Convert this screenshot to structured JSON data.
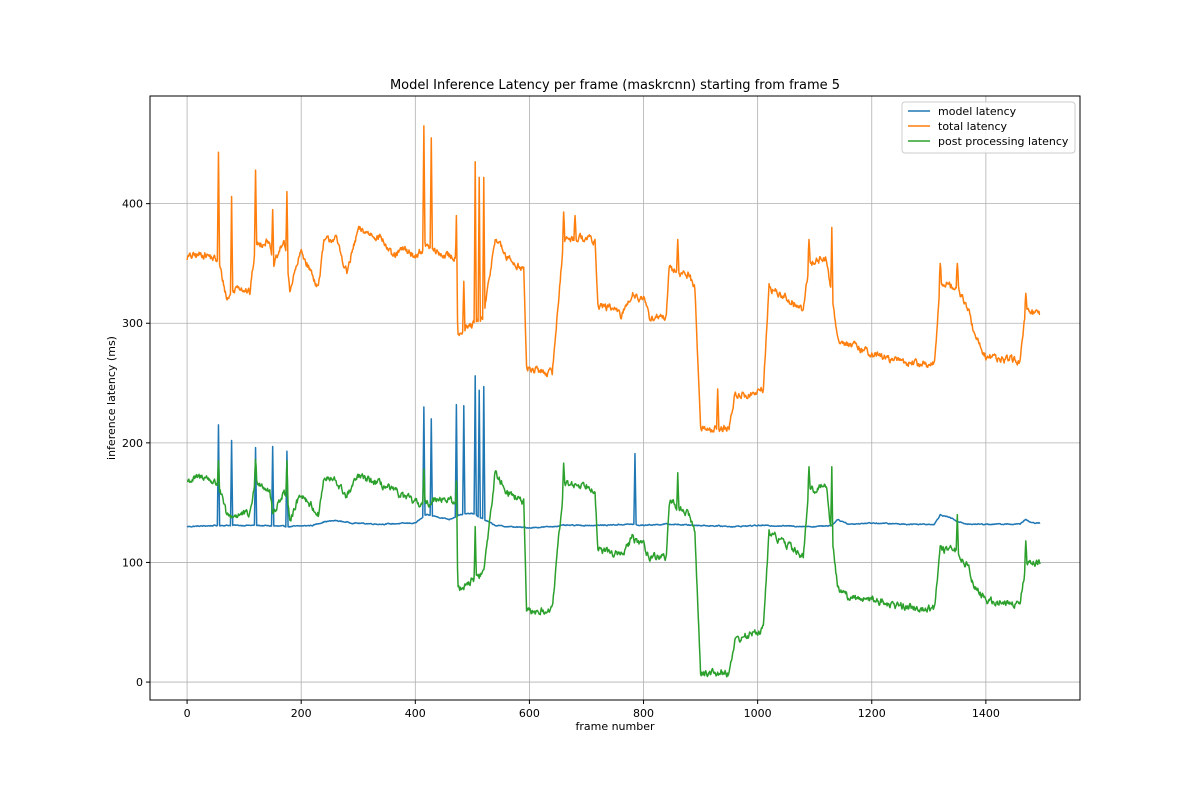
{
  "chart_data": {
    "type": "line",
    "title": "Model Inference Latency per frame (maskrcnn) starting from frame 5",
    "xlabel": "frame number",
    "ylabel": "inference latency (ms)",
    "xlim": [
      -65,
      1565
    ],
    "ylim": [
      -15,
      490
    ],
    "xticks": [
      0,
      200,
      400,
      600,
      800,
      1000,
      1200,
      1400
    ],
    "yticks": [
      0,
      100,
      200,
      300,
      400
    ],
    "grid": true,
    "legend_position": "top-right",
    "series": [
      {
        "name": "model latency",
        "color": "#1f77b4",
        "baseline": [
          [
            0,
            130
          ],
          [
            60,
            131
          ],
          [
            120,
            131
          ],
          [
            180,
            130
          ],
          [
            220,
            131
          ],
          [
            240,
            134
          ],
          [
            260,
            135
          ],
          [
            290,
            133
          ],
          [
            340,
            132
          ],
          [
            400,
            133
          ],
          [
            420,
            140
          ],
          [
            460,
            136
          ],
          [
            478,
            140
          ],
          [
            500,
            141
          ],
          [
            540,
            131
          ],
          [
            560,
            130
          ],
          [
            600,
            129
          ],
          [
            640,
            130
          ],
          [
            660,
            131
          ],
          [
            720,
            131
          ],
          [
            780,
            132
          ],
          [
            790,
            131
          ],
          [
            840,
            132
          ],
          [
            900,
            131
          ],
          [
            960,
            130
          ],
          [
            1000,
            131
          ],
          [
            1100,
            130
          ],
          [
            1130,
            131
          ],
          [
            1140,
            136
          ],
          [
            1160,
            132
          ],
          [
            1200,
            133
          ],
          [
            1260,
            132
          ],
          [
            1310,
            132
          ],
          [
            1320,
            140
          ],
          [
            1340,
            137
          ],
          [
            1350,
            134
          ],
          [
            1370,
            132
          ],
          [
            1460,
            132
          ],
          [
            1470,
            136
          ],
          [
            1480,
            133
          ],
          [
            1495,
            133
          ]
        ],
        "spikes": [
          [
            55,
            215
          ],
          [
            78,
            202
          ],
          [
            120,
            196
          ],
          [
            150,
            197
          ],
          [
            175,
            193
          ],
          [
            415,
            230
          ],
          [
            428,
            220
          ],
          [
            472,
            232
          ],
          [
            485,
            231
          ],
          [
            505,
            256
          ],
          [
            512,
            244
          ],
          [
            520,
            247
          ],
          [
            785,
            191
          ]
        ]
      },
      {
        "name": "total latency",
        "color": "#ff7f0e",
        "baseline": [
          [
            0,
            355
          ],
          [
            30,
            358
          ],
          [
            55,
            352
          ],
          [
            70,
            320
          ],
          [
            90,
            332
          ],
          [
            110,
            325
          ],
          [
            120,
            365
          ],
          [
            145,
            370
          ],
          [
            150,
            345
          ],
          [
            170,
            370
          ],
          [
            180,
            328
          ],
          [
            200,
            360
          ],
          [
            230,
            330
          ],
          [
            240,
            368
          ],
          [
            260,
            372
          ],
          [
            280,
            342
          ],
          [
            300,
            378
          ],
          [
            340,
            372
          ],
          [
            360,
            355
          ],
          [
            380,
            362
          ],
          [
            400,
            356
          ],
          [
            420,
            365
          ],
          [
            440,
            358
          ],
          [
            470,
            355
          ],
          [
            475,
            292
          ],
          [
            500,
            298
          ],
          [
            520,
            305
          ],
          [
            540,
            372
          ],
          [
            560,
            355
          ],
          [
            590,
            345
          ],
          [
            595,
            262
          ],
          [
            640,
            258
          ],
          [
            660,
            370
          ],
          [
            700,
            372
          ],
          [
            715,
            368
          ],
          [
            720,
            315
          ],
          [
            750,
            312
          ],
          [
            760,
            305
          ],
          [
            780,
            325
          ],
          [
            800,
            320
          ],
          [
            810,
            305
          ],
          [
            840,
            305
          ],
          [
            845,
            345
          ],
          [
            880,
            340
          ],
          [
            890,
            330
          ],
          [
            900,
            212
          ],
          [
            950,
            212
          ],
          [
            960,
            240
          ],
          [
            990,
            240
          ],
          [
            1010,
            245
          ],
          [
            1020,
            330
          ],
          [
            1060,
            318
          ],
          [
            1080,
            310
          ],
          [
            1090,
            350
          ],
          [
            1120,
            355
          ],
          [
            1140,
            288
          ],
          [
            1160,
            282
          ],
          [
            1200,
            275
          ],
          [
            1230,
            270
          ],
          [
            1280,
            266
          ],
          [
            1310,
            265
          ],
          [
            1320,
            335
          ],
          [
            1350,
            330
          ],
          [
            1370,
            310
          ],
          [
            1380,
            290
          ],
          [
            1400,
            272
          ],
          [
            1460,
            268
          ],
          [
            1470,
            310
          ],
          [
            1495,
            307
          ]
        ],
        "spikes": [
          [
            55,
            443
          ],
          [
            78,
            406
          ],
          [
            120,
            428
          ],
          [
            150,
            395
          ],
          [
            175,
            410
          ],
          [
            415,
            465
          ],
          [
            428,
            455
          ],
          [
            472,
            390
          ],
          [
            485,
            335
          ],
          [
            505,
            435
          ],
          [
            512,
            422
          ],
          [
            520,
            422
          ],
          [
            660,
            393
          ],
          [
            680,
            390
          ],
          [
            860,
            370
          ],
          [
            930,
            245
          ],
          [
            1090,
            370
          ],
          [
            1130,
            380
          ],
          [
            1320,
            350
          ],
          [
            1350,
            350
          ],
          [
            1470,
            325
          ]
        ]
      },
      {
        "name": "post processing latency",
        "color": "#2ca02c",
        "baseline": [
          [
            0,
            168
          ],
          [
            30,
            172
          ],
          [
            55,
            165
          ],
          [
            70,
            138
          ],
          [
            90,
            140
          ],
          [
            110,
            140
          ],
          [
            120,
            170
          ],
          [
            145,
            160
          ],
          [
            150,
            140
          ],
          [
            170,
            160
          ],
          [
            180,
            137
          ],
          [
            200,
            158
          ],
          [
            230,
            140
          ],
          [
            240,
            170
          ],
          [
            260,
            168
          ],
          [
            280,
            155
          ],
          [
            300,
            172
          ],
          [
            340,
            165
          ],
          [
            360,
            160
          ],
          [
            380,
            155
          ],
          [
            400,
            150
          ],
          [
            420,
            148
          ],
          [
            440,
            155
          ],
          [
            470,
            150
          ],
          [
            475,
            78
          ],
          [
            500,
            85
          ],
          [
            520,
            92
          ],
          [
            540,
            175
          ],
          [
            560,
            160
          ],
          [
            590,
            150
          ],
          [
            595,
            58
          ],
          [
            640,
            60
          ],
          [
            660,
            165
          ],
          [
            700,
            165
          ],
          [
            715,
            162
          ],
          [
            720,
            110
          ],
          [
            750,
            108
          ],
          [
            760,
            105
          ],
          [
            780,
            120
          ],
          [
            800,
            115
          ],
          [
            810,
            105
          ],
          [
            840,
            105
          ],
          [
            845,
            150
          ],
          [
            880,
            140
          ],
          [
            890,
            125
          ],
          [
            900,
            8
          ],
          [
            950,
            8
          ],
          [
            960,
            35
          ],
          [
            990,
            40
          ],
          [
            1010,
            45
          ],
          [
            1020,
            125
          ],
          [
            1060,
            112
          ],
          [
            1080,
            105
          ],
          [
            1090,
            160
          ],
          [
            1120,
            165
          ],
          [
            1140,
            80
          ],
          [
            1160,
            70
          ],
          [
            1200,
            70
          ],
          [
            1230,
            65
          ],
          [
            1280,
            62
          ],
          [
            1310,
            62
          ],
          [
            1320,
            110
          ],
          [
            1350,
            110
          ],
          [
            1370,
            95
          ],
          [
            1380,
            80
          ],
          [
            1400,
            68
          ],
          [
            1460,
            65
          ],
          [
            1470,
            100
          ],
          [
            1495,
            100
          ]
        ],
        "spikes": [
          [
            55,
            185
          ],
          [
            120,
            186
          ],
          [
            175,
            185
          ],
          [
            415,
            178
          ],
          [
            472,
            168
          ],
          [
            505,
            130
          ],
          [
            660,
            183
          ],
          [
            860,
            175
          ],
          [
            1090,
            180
          ],
          [
            1130,
            180
          ],
          [
            1350,
            140
          ],
          [
            1470,
            118
          ]
        ]
      }
    ]
  }
}
